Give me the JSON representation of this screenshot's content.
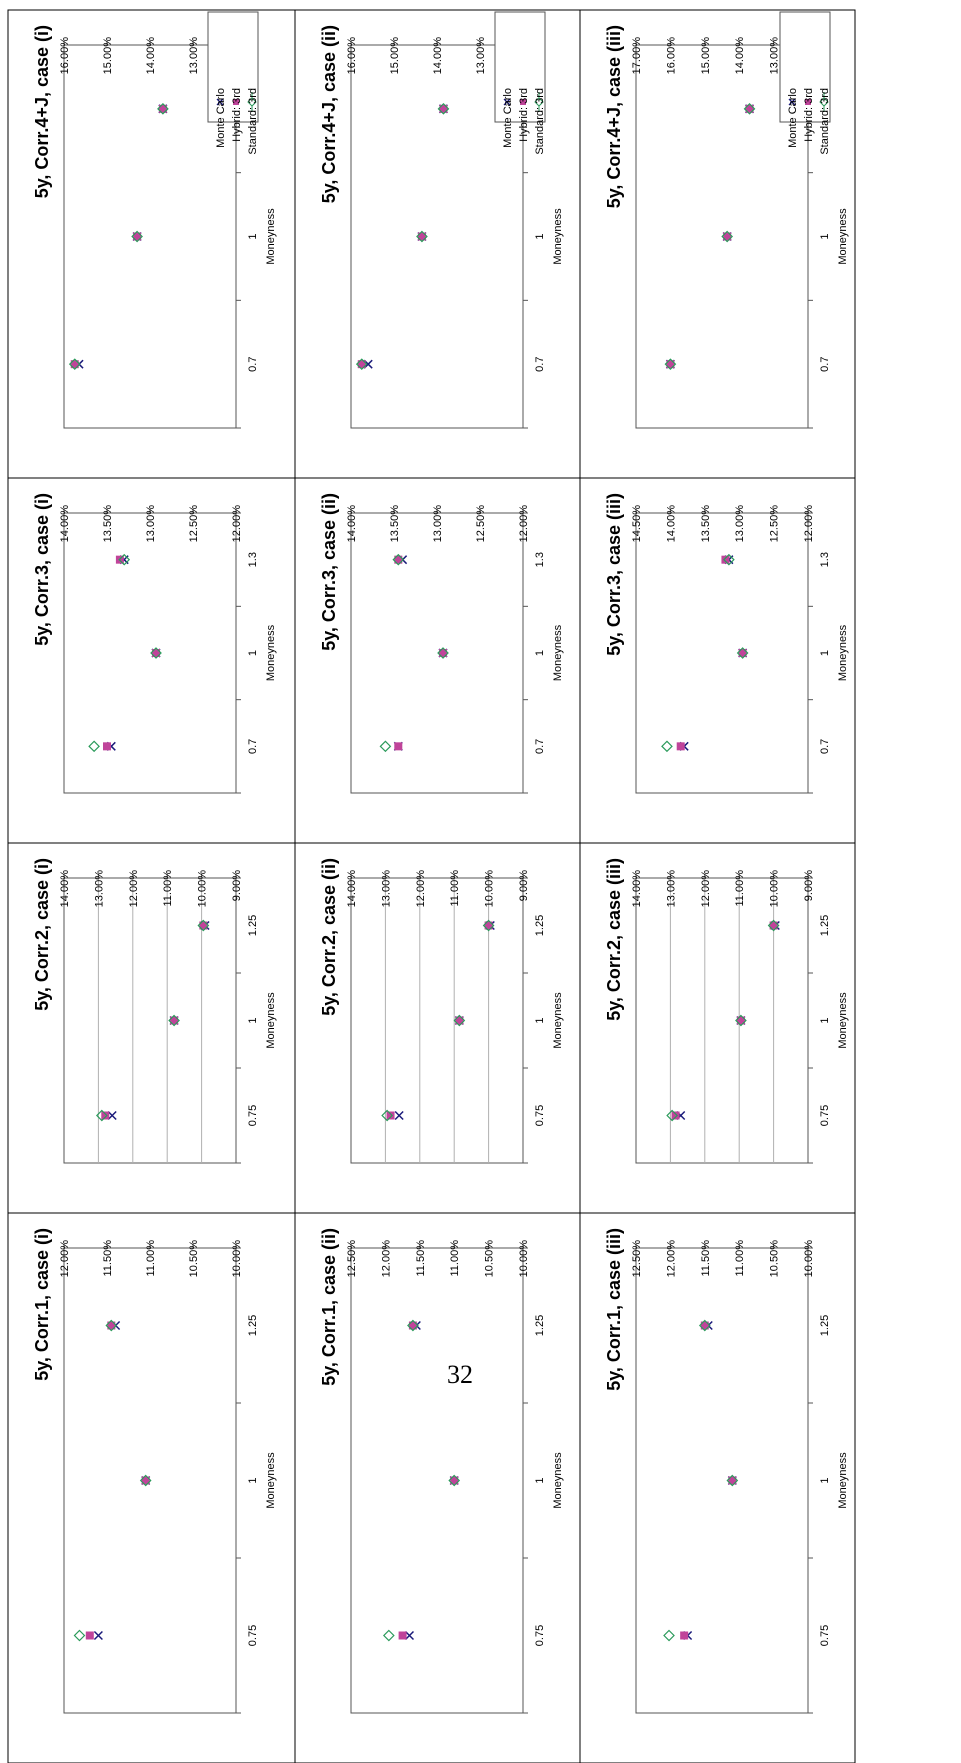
{
  "page_number": "32",
  "colors": {
    "monte_carlo": "#1a1a7a",
    "hybrid": "#c0449a",
    "standard": "#2a9a5a",
    "grid": "#b0b0b0"
  },
  "legend": {
    "monte_carlo": "Monte Carlo",
    "hybrid": "Hybrid: 3rd",
    "standard": "Standard: 3rd"
  },
  "chart_data": [
    {
      "id": "c11",
      "type": "scatter",
      "title": "5y, Corr.1, case (i)",
      "xlabel": "Moneyness",
      "categories": [
        "0.75",
        "1",
        "1.25"
      ],
      "ylim": [
        10.0,
        12.0
      ],
      "yticks": [
        "12.00%",
        "11.50%",
        "11.00%",
        "10.50%",
        "10.00%"
      ],
      "grid": false,
      "series": [
        {
          "name": "Monte Carlo",
          "values": [
            11.6,
            11.05,
            11.4
          ]
        },
        {
          "name": "Hybrid: 3rd",
          "values": [
            11.7,
            11.05,
            11.45
          ]
        },
        {
          "name": "Standard: 3rd",
          "values": [
            11.82,
            11.05,
            11.45
          ]
        }
      ]
    },
    {
      "id": "c12",
      "type": "scatter",
      "title": "5y, Corr.1, case (ii)",
      "xlabel": "Moneyness",
      "categories": [
        "0.75",
        "1",
        "1.25"
      ],
      "ylim": [
        10.0,
        12.5
      ],
      "yticks": [
        "12.50%",
        "12.00%",
        "11.50%",
        "11.00%",
        "10.50%",
        "10.00%"
      ],
      "grid": false,
      "series": [
        {
          "name": "Monte Carlo",
          "values": [
            11.65,
            11.0,
            11.55
          ]
        },
        {
          "name": "Hybrid: 3rd",
          "values": [
            11.75,
            11.0,
            11.6
          ]
        },
        {
          "name": "Standard: 3rd",
          "values": [
            11.95,
            11.0,
            11.6
          ]
        }
      ]
    },
    {
      "id": "c13",
      "type": "scatter",
      "title": "5y, Corr.1, case (iii)",
      "xlabel": "Moneyness",
      "categories": [
        "0.75",
        "1",
        "1.25"
      ],
      "ylim": [
        10.0,
        12.5
      ],
      "yticks": [
        "12.50%",
        "12.00%",
        "11.50%",
        "11.00%",
        "10.50%",
        "10.00%"
      ],
      "grid": false,
      "series": [
        {
          "name": "Monte Carlo",
          "values": [
            11.75,
            11.1,
            11.45
          ]
        },
        {
          "name": "Hybrid: 3rd",
          "values": [
            11.8,
            11.1,
            11.5
          ]
        },
        {
          "name": "Standard: 3rd",
          "values": [
            12.02,
            11.1,
            11.5
          ]
        }
      ]
    },
    {
      "id": "c21",
      "type": "scatter",
      "title": "5y, Corr.2, case (i)",
      "xlabel": "Moneyness",
      "categories": [
        "0.75",
        "1",
        "1.25"
      ],
      "ylim": [
        9.0,
        14.0
      ],
      "yticks": [
        "14.00%",
        "13.00%",
        "12.00%",
        "11.00%",
        "10.00%",
        "9.00%"
      ],
      "grid": true,
      "series": [
        {
          "name": "Monte Carlo",
          "values": [
            12.6,
            10.8,
            9.9
          ]
        },
        {
          "name": "Hybrid: 3rd",
          "values": [
            12.8,
            10.8,
            9.95
          ]
        },
        {
          "name": "Standard: 3rd",
          "values": [
            12.9,
            10.8,
            9.95
          ]
        }
      ]
    },
    {
      "id": "c22",
      "type": "scatter",
      "title": "5y, Corr.2, case (ii)",
      "xlabel": "Moneyness",
      "categories": [
        "0.75",
        "1",
        "1.25"
      ],
      "ylim": [
        9.0,
        14.0
      ],
      "yticks": [
        "14.00%",
        "13.00%",
        "12.00%",
        "11.00%",
        "10.00%",
        "9.00%"
      ],
      "grid": true,
      "series": [
        {
          "name": "Monte Carlo",
          "values": [
            12.6,
            10.85,
            9.95
          ]
        },
        {
          "name": "Hybrid: 3rd",
          "values": [
            12.85,
            10.85,
            10.0
          ]
        },
        {
          "name": "Standard: 3rd",
          "values": [
            12.95,
            10.85,
            10.0
          ]
        }
      ]
    },
    {
      "id": "c23",
      "type": "scatter",
      "title": "5y, Corr.2, case (iii)",
      "xlabel": "Moneyness",
      "categories": [
        "0.75",
        "1",
        "1.25"
      ],
      "ylim": [
        9.0,
        14.0
      ],
      "yticks": [
        "14.00%",
        "13.00%",
        "12.00%",
        "11.00%",
        "10.00%",
        "9.00%"
      ],
      "grid": true,
      "series": [
        {
          "name": "Monte Carlo",
          "values": [
            12.7,
            10.95,
            9.95
          ]
        },
        {
          "name": "Hybrid: 3rd",
          "values": [
            12.85,
            10.95,
            10.0
          ]
        },
        {
          "name": "Standard: 3rd",
          "values": [
            12.95,
            10.95,
            10.0
          ]
        }
      ]
    },
    {
      "id": "c31",
      "type": "scatter",
      "title": "5y, Corr.3, case (i)",
      "xlabel": "Moneyness",
      "categories": [
        "0.7",
        "1",
        "1.3"
      ],
      "ylim": [
        12.0,
        14.0
      ],
      "yticks": [
        "14.00%",
        "13.50%",
        "13.00%",
        "12.50%",
        "12.00%"
      ],
      "grid": false,
      "series": [
        {
          "name": "Monte Carlo",
          "values": [
            13.45,
            12.93,
            13.3
          ]
        },
        {
          "name": "Hybrid: 3rd",
          "values": [
            13.5,
            12.93,
            13.35
          ]
        },
        {
          "name": "Standard: 3rd",
          "values": [
            13.65,
            12.93,
            13.3
          ]
        }
      ]
    },
    {
      "id": "c32",
      "type": "scatter",
      "title": "5y, Corr.3, case (ii)",
      "xlabel": "Moneyness",
      "categories": [
        "0.7",
        "1",
        "1.3"
      ],
      "ylim": [
        12.0,
        14.0
      ],
      "yticks": [
        "14.00%",
        "13.50%",
        "13.00%",
        "12.50%",
        "12.00%"
      ],
      "grid": false,
      "series": [
        {
          "name": "Monte Carlo",
          "values": [
            13.45,
            12.93,
            13.4
          ]
        },
        {
          "name": "Hybrid: 3rd",
          "values": [
            13.45,
            12.93,
            13.45
          ]
        },
        {
          "name": "Standard: 3rd",
          "values": [
            13.6,
            12.93,
            13.45
          ]
        }
      ]
    },
    {
      "id": "c33",
      "type": "scatter",
      "title": "5y, Corr.3, case (iii)",
      "xlabel": "Moneyness",
      "categories": [
        "0.7",
        "1",
        "1.3"
      ],
      "ylim": [
        12.0,
        14.5
      ],
      "yticks": [
        "14.50%",
        "14.00%",
        "13.50%",
        "13.00%",
        "12.50%",
        "12.00%"
      ],
      "grid": false,
      "series": [
        {
          "name": "Monte Carlo",
          "values": [
            13.8,
            12.95,
            13.15
          ]
        },
        {
          "name": "Hybrid: 3rd",
          "values": [
            13.85,
            12.95,
            13.2
          ]
        },
        {
          "name": "Standard: 3rd",
          "values": [
            14.05,
            12.95,
            13.15
          ]
        }
      ]
    },
    {
      "id": "c41",
      "type": "scatter",
      "title": "5y, Corr.4+J, case (i)",
      "xlabel": "Moneyness",
      "categories": [
        "0.7",
        "1",
        "1.3"
      ],
      "ylim": [
        12.0,
        16.0
      ],
      "yticks": [
        "16.00%",
        "15.00%",
        "14.00%",
        "13.00%",
        "12.00%"
      ],
      "grid": false,
      "series": [
        {
          "name": "Monte Carlo",
          "values": [
            15.65,
            14.3,
            13.7
          ]
        },
        {
          "name": "Hybrid: 3rd",
          "values": [
            15.75,
            14.3,
            13.7
          ]
        },
        {
          "name": "Standard: 3rd",
          "values": [
            15.75,
            14.3,
            13.7
          ]
        }
      ]
    },
    {
      "id": "c42",
      "type": "scatter",
      "title": "5y, Corr.4+J, case (ii)",
      "xlabel": "Moneyness",
      "categories": [
        "0.7",
        "1",
        "1.3"
      ],
      "ylim": [
        12.0,
        16.0
      ],
      "yticks": [
        "16.00%",
        "15.00%",
        "14.00%",
        "13.00%",
        "12.00%"
      ],
      "grid": false,
      "series": [
        {
          "name": "Monte Carlo",
          "values": [
            15.6,
            14.35,
            13.85
          ]
        },
        {
          "name": "Hybrid: 3rd",
          "values": [
            15.75,
            14.35,
            13.85
          ]
        },
        {
          "name": "Standard: 3rd",
          "values": [
            15.75,
            14.35,
            13.85
          ]
        }
      ]
    },
    {
      "id": "c43",
      "type": "scatter",
      "title": "5y, Corr.4+J, case (iii)",
      "xlabel": "Moneyness",
      "categories": [
        "0.7",
        "1",
        "1.3"
      ],
      "ylim": [
        12.0,
        17.0
      ],
      "yticks": [
        "17.00%",
        "16.00%",
        "15.00%",
        "14.00%",
        "13.00%",
        "12.00%"
      ],
      "grid": false,
      "series": [
        {
          "name": "Monte Carlo",
          "values": [
            16.0,
            14.35,
            13.7
          ]
        },
        {
          "name": "Hybrid: 3rd",
          "values": [
            16.0,
            14.35,
            13.7
          ]
        },
        {
          "name": "Standard: 3rd",
          "values": [
            16.0,
            14.35,
            13.7
          ]
        }
      ]
    }
  ]
}
